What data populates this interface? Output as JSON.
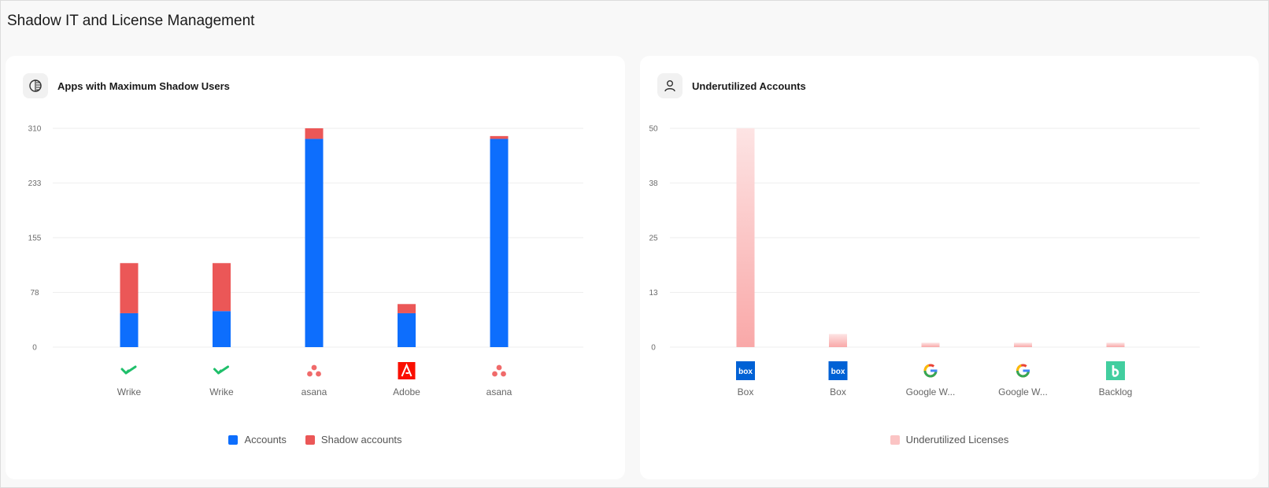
{
  "page": {
    "title": "Shadow IT and License Management"
  },
  "shadow_card": {
    "title": "Apps with Maximum Shadow Users",
    "icon": "half-circle-icon",
    "colors": {
      "accounts": "#0d6efd",
      "shadow": "#eb5757"
    }
  },
  "underutilized_card": {
    "title": "Underutilized Accounts",
    "icon": "user-icon",
    "colors": {
      "licenses_top": "#fde4e4",
      "licenses_bottom": "#f9a8a8"
    }
  },
  "chart_data": [
    {
      "type": "bar",
      "stacked": true,
      "categories": [
        "Wrike",
        "Wrike",
        "asana",
        "Adobe",
        "asana"
      ],
      "category_icons": [
        "wrike-icon",
        "wrike-icon",
        "asana-icon",
        "adobe-icon",
        "asana-icon"
      ],
      "series": [
        {
          "name": "Accounts",
          "values": [
            48,
            51,
            295,
            48,
            295
          ]
        },
        {
          "name": "Shadow accounts",
          "values": [
            71,
            68,
            15,
            13,
            4
          ]
        }
      ],
      "yticks": [
        "0",
        "78",
        "155",
        "233",
        "310"
      ],
      "ylim": [
        0,
        310
      ],
      "grid": true,
      "legend": "bottom"
    },
    {
      "type": "bar",
      "categories": [
        "Box",
        "Box",
        "Google W...",
        "Google W...",
        "Backlog"
      ],
      "category_icons": [
        "box-icon",
        "box-icon",
        "google-icon",
        "google-icon",
        "backlog-icon"
      ],
      "series": [
        {
          "name": "Underutilized Licenses",
          "values": [
            50,
            3,
            1,
            1,
            1
          ]
        }
      ],
      "yticks": [
        "0",
        "13",
        "25",
        "38",
        "50"
      ],
      "ylim": [
        0,
        50
      ],
      "grid": true,
      "legend": "bottom"
    }
  ]
}
